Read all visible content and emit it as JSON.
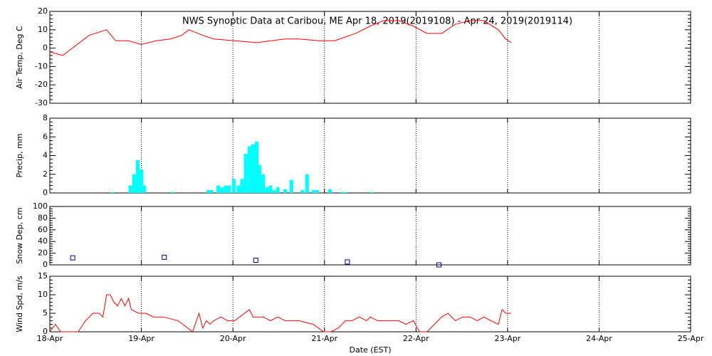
{
  "chart_data": [
    {
      "type": "line",
      "title": "NWS Synoptic Data at Caribou, ME   Apr 18, 2019(2019108) - Apr 24, 2019(2019114)",
      "ylabel": "Air Temp, Deg C",
      "color": "#ff0000",
      "xlim": [
        0,
        7
      ],
      "ylim": [
        -30,
        20
      ],
      "yticks": [
        -30,
        -20,
        -10,
        0,
        10,
        20
      ],
      "x": [
        0,
        0.14,
        0.43,
        0.62,
        0.72,
        0.86,
        1.0,
        1.16,
        1.32,
        1.44,
        1.52,
        1.67,
        1.79,
        2.02,
        2.26,
        2.41,
        2.57,
        2.72,
        2.95,
        3.11,
        3.34,
        3.5,
        3.65,
        3.81,
        3.97,
        4.12,
        4.28,
        4.43,
        4.59,
        4.74,
        4.9,
        4.98,
        5.04
      ],
      "values": [
        -2,
        -4,
        7,
        10,
        4,
        4,
        2,
        4,
        5,
        7,
        10,
        7,
        5,
        4,
        3,
        4,
        5,
        5,
        4,
        4,
        8,
        12,
        15,
        15,
        12,
        8,
        8,
        13,
        15,
        15,
        10,
        5,
        3
      ]
    },
    {
      "type": "bar",
      "ylabel": "Precip, mm",
      "color": "#00ffff",
      "xlim": [
        0,
        7
      ],
      "ylim": [
        0,
        8
      ],
      "yticks": [
        0,
        2,
        4,
        6,
        8
      ],
      "x": [
        0.68,
        0.88,
        0.92,
        0.96,
        1.0,
        1.03,
        1.34,
        1.73,
        1.77,
        1.84,
        1.88,
        1.92,
        1.96,
        2.01,
        2.06,
        2.1,
        2.14,
        2.18,
        2.22,
        2.26,
        2.29,
        2.33,
        2.37,
        2.41,
        2.45,
        2.49,
        2.57,
        2.64,
        2.76,
        2.81,
        2.88,
        2.92,
        3.06,
        3.19,
        3.23,
        3.51
      ],
      "values": [
        0.1,
        0.8,
        2,
        3.5,
        2.5,
        0.8,
        0.1,
        0.3,
        0.3,
        0.8,
        0.6,
        0.8,
        0.8,
        1.5,
        0.8,
        1.5,
        4.2,
        5,
        5.2,
        5.5,
        3,
        2,
        0.6,
        0.8,
        0.3,
        0.6,
        0.4,
        1.4,
        0.3,
        2,
        0.3,
        0.3,
        0.4,
        0.1,
        0.1,
        0.1
      ]
    },
    {
      "type": "scatter",
      "ylabel": "Snow Dep, cm",
      "color": "#000080",
      "xlim": [
        0,
        7
      ],
      "ylim": [
        0,
        100
      ],
      "yticks": [
        0,
        20,
        40,
        60,
        80,
        100
      ],
      "x": [
        0.25,
        1.25,
        2.25,
        3.25,
        4.25
      ],
      "values": [
        12,
        13,
        8,
        5,
        0
      ]
    },
    {
      "type": "line",
      "ylabel": "Wind Spd, m/s",
      "xlabel": "Date (EST)",
      "color": "#ff0000",
      "xlim": [
        0,
        7
      ],
      "ylim": [
        0,
        15
      ],
      "yticks": [
        0,
        5,
        10,
        15
      ],
      "xticks": [
        {
          "value": 0,
          "label": "18-Apr"
        },
        {
          "value": 1,
          "label": "19-Apr"
        },
        {
          "value": 2,
          "label": "20-Apr"
        },
        {
          "value": 3,
          "label": "21-Apr"
        },
        {
          "value": 4,
          "label": "22-Apr"
        },
        {
          "value": 5,
          "label": "23-Apr"
        },
        {
          "value": 6,
          "label": "24-Apr"
        },
        {
          "value": 7,
          "label": "25-Apr"
        }
      ],
      "x": [
        0,
        0.06,
        0.12,
        0.23,
        0.31,
        0.39,
        0.47,
        0.54,
        0.58,
        0.62,
        0.66,
        0.7,
        0.74,
        0.78,
        0.82,
        0.86,
        0.89,
        0.97,
        1.05,
        1.13,
        1.24,
        1.4,
        1.56,
        1.63,
        1.67,
        1.71,
        1.75,
        1.79,
        1.87,
        1.94,
        2.02,
        2.18,
        2.22,
        2.33,
        2.41,
        2.49,
        2.57,
        2.72,
        2.88,
        2.99,
        3.07,
        3.15,
        3.23,
        3.3,
        3.38,
        3.46,
        3.5,
        3.58,
        3.65,
        3.73,
        3.81,
        3.89,
        3.97,
        4.04,
        4.12,
        4.2,
        4.28,
        4.35,
        4.43,
        4.51,
        4.59,
        4.67,
        4.74,
        4.82,
        4.9,
        4.94,
        4.98,
        5.04
      ],
      "values": [
        0,
        2,
        0,
        0,
        0,
        3,
        5,
        5,
        4,
        10,
        10,
        8,
        7,
        9,
        7,
        9,
        6,
        5,
        5,
        4,
        4,
        3,
        0,
        5,
        1,
        3,
        2,
        3,
        4,
        3,
        3,
        6,
        4,
        4,
        3,
        4,
        3,
        3,
        2,
        0,
        0,
        1,
        3,
        3,
        4,
        3,
        4,
        3,
        3,
        3,
        3,
        2,
        3,
        0,
        0,
        2,
        4,
        5,
        3,
        4,
        4,
        3,
        4,
        3,
        2,
        6,
        5,
        5
      ]
    }
  ]
}
